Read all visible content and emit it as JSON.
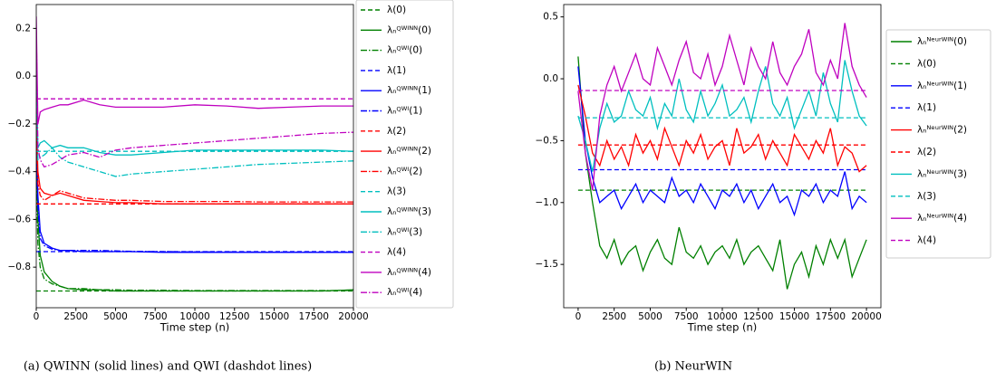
{
  "chart_data": [
    {
      "type": "line",
      "xlabel": "Time step (n)",
      "caption": "(a) QWINN (solid lines) and QWI (dashdot lines)",
      "x": [
        0,
        100,
        250,
        500,
        1000,
        1500,
        2000,
        3000,
        4000,
        5000,
        6000,
        8000,
        10000,
        12000,
        14000,
        16000,
        18000,
        20000
      ],
      "xlim": [
        0,
        20000
      ],
      "xticks": [
        0,
        2500,
        5000,
        7500,
        10000,
        12500,
        15000,
        17500,
        20000
      ],
      "ylim": [
        -0.97,
        0.3
      ],
      "yticks": [
        0.2,
        {
          "value": 0,
          "label": "0.0"
        },
        {
          "value": -0.2,
          "label": "−0.2"
        },
        {
          "value": -0.4,
          "label": "−0.4"
        },
        {
          "value": -0.6,
          "label": "−0.6"
        },
        {
          "value": -0.8,
          "label": "−0.8"
        }
      ],
      "legend": "outside right",
      "series": [
        {
          "name": "λ(0)",
          "color": "#008000",
          "style": "dashed",
          "x": [
            0,
            20000
          ],
          "values": [
            -0.9,
            -0.9
          ]
        },
        {
          "name": "λₙꟴᵂᴵᴺᴺ(0)",
          "color": "#008000",
          "style": "solid",
          "values": [
            -0.3,
            -0.6,
            -0.75,
            -0.82,
            -0.86,
            -0.88,
            -0.89,
            -0.895,
            -0.895,
            -0.9,
            -0.9,
            -0.9,
            -0.9,
            -0.9,
            -0.9,
            -0.9,
            -0.9,
            -0.895
          ]
        },
        {
          "name": "λₙꟴᵂᴵ(0)",
          "color": "#008000",
          "style": "dashdot",
          "values": [
            -0.4,
            -0.7,
            -0.8,
            -0.85,
            -0.87,
            -0.88,
            -0.89,
            -0.89,
            -0.895,
            -0.895,
            -0.897,
            -0.897,
            -0.898,
            -0.898,
            -0.898,
            -0.898,
            -0.898,
            -0.898
          ]
        },
        {
          "name": "λ(1)",
          "color": "#0000ff",
          "style": "dashed",
          "x": [
            0,
            20000
          ],
          "values": [
            -0.735,
            -0.735
          ]
        },
        {
          "name": "λₙꟴᵂᴵᴺᴺ(1)",
          "color": "#0000ff",
          "style": "solid",
          "values": [
            -0.2,
            -0.5,
            -0.65,
            -0.7,
            -0.72,
            -0.73,
            -0.73,
            -0.735,
            -0.735,
            -0.735,
            -0.735,
            -0.738,
            -0.738,
            -0.738,
            -0.738,
            -0.738,
            -0.738,
            -0.738
          ]
        },
        {
          "name": "λₙꟴᵂᴵ(1)",
          "color": "#0000ff",
          "style": "dashdot",
          "values": [
            -0.3,
            -0.55,
            -0.68,
            -0.71,
            -0.725,
            -0.73,
            -0.73,
            -0.73,
            -0.73,
            -0.732,
            -0.734,
            -0.735,
            -0.736,
            -0.736,
            -0.737,
            -0.737,
            -0.737,
            -0.737
          ]
        },
        {
          "name": "λ(2)",
          "color": "#ff0000",
          "style": "dashed",
          "x": [
            0,
            20000
          ],
          "values": [
            -0.535,
            -0.535
          ]
        },
        {
          "name": "λₙꟴᵂᴵᴺᴺ(2)",
          "color": "#ff0000",
          "style": "solid",
          "values": [
            -0.15,
            -0.4,
            -0.47,
            -0.49,
            -0.5,
            -0.49,
            -0.5,
            -0.52,
            -0.525,
            -0.53,
            -0.53,
            -0.535,
            -0.535,
            -0.535,
            -0.535,
            -0.535,
            -0.535,
            -0.535
          ]
        },
        {
          "name": "λₙꟴᵂᴵ(2)",
          "color": "#ff0000",
          "style": "dashdot",
          "values": [
            -0.2,
            -0.45,
            -0.5,
            -0.52,
            -0.5,
            -0.48,
            -0.49,
            -0.51,
            -0.515,
            -0.52,
            -0.52,
            -0.525,
            -0.525,
            -0.525,
            -0.527,
            -0.527,
            -0.527,
            -0.527
          ]
        },
        {
          "name": "λ(3)",
          "color": "#00bfbf",
          "style": "dashed",
          "x": [
            0,
            20000
          ],
          "values": [
            -0.315,
            -0.315
          ]
        },
        {
          "name": "λₙꟴᵂᴵᴺᴺ(3)",
          "color": "#00bfbf",
          "style": "solid",
          "values": [
            0.0,
            -0.3,
            -0.28,
            -0.27,
            -0.3,
            -0.29,
            -0.3,
            -0.3,
            -0.32,
            -0.33,
            -0.33,
            -0.32,
            -0.31,
            -0.31,
            -0.31,
            -0.31,
            -0.31,
            -0.315
          ]
        },
        {
          "name": "λₙꟴᵂᴵ(3)",
          "color": "#00bfbf",
          "style": "dashdot",
          "values": [
            0.1,
            -0.35,
            -0.34,
            -0.33,
            -0.3,
            -0.34,
            -0.36,
            -0.38,
            -0.4,
            -0.42,
            -0.41,
            -0.4,
            -0.39,
            -0.38,
            -0.37,
            -0.365,
            -0.36,
            -0.355
          ]
        },
        {
          "name": "λ(4)",
          "color": "#bf00bf",
          "style": "dashed",
          "x": [
            0,
            20000
          ],
          "values": [
            -0.095,
            -0.095
          ]
        },
        {
          "name": "λₙꟴᵂᴵᴺᴺ(4)",
          "color": "#bf00bf",
          "style": "solid",
          "values": [
            0.25,
            -0.2,
            -0.15,
            -0.14,
            -0.13,
            -0.12,
            -0.12,
            -0.1,
            -0.12,
            -0.13,
            -0.13,
            -0.13,
            -0.12,
            -0.125,
            -0.135,
            -0.13,
            -0.125,
            -0.125
          ]
        },
        {
          "name": "λₙꟴᵂᴵ(4)",
          "color": "#bf00bf",
          "style": "dashdot",
          "values": [
            0.2,
            -0.3,
            -0.35,
            -0.38,
            -0.37,
            -0.35,
            -0.33,
            -0.32,
            -0.34,
            -0.31,
            -0.3,
            -0.29,
            -0.28,
            -0.27,
            -0.26,
            -0.25,
            -0.24,
            -0.235
          ]
        }
      ]
    },
    {
      "type": "line",
      "xlabel": "Time step (n)",
      "caption": "(b) NeurWIN",
      "x": [
        0,
        500,
        1000,
        1500,
        2000,
        2500,
        3000,
        3500,
        4000,
        4500,
        5000,
        5500,
        6000,
        6500,
        7000,
        7500,
        8000,
        8500,
        9000,
        9500,
        10000,
        10500,
        11000,
        11500,
        12000,
        12500,
        13000,
        13500,
        14000,
        14500,
        15000,
        15500,
        16000,
        16500,
        17000,
        17500,
        18000,
        18500,
        19000,
        19500,
        20000
      ],
      "xlim": [
        -1000,
        21000
      ],
      "xticks": [
        0,
        2500,
        5000,
        7500,
        10000,
        12500,
        15000,
        17500,
        20000
      ],
      "ylim": [
        -1.85,
        0.6
      ],
      "yticks": [
        0.5,
        {
          "value": 0,
          "label": "0.0"
        },
        {
          "value": -0.5,
          "label": "−0.5"
        },
        {
          "value": -1.0,
          "label": "−1.0"
        },
        {
          "value": -1.5,
          "label": "−1.5"
        }
      ],
      "legend": "outside right",
      "series": [
        {
          "name": "λₙᴺᵉᵘʳᵂᴵᴺ(0)",
          "color": "#008000",
          "style": "solid",
          "values": [
            0.18,
            -0.6,
            -1.0,
            -1.35,
            -1.45,
            -1.3,
            -1.5,
            -1.4,
            -1.35,
            -1.55,
            -1.4,
            -1.3,
            -1.45,
            -1.5,
            -1.2,
            -1.4,
            -1.45,
            -1.35,
            -1.5,
            -1.4,
            -1.35,
            -1.45,
            -1.3,
            -1.5,
            -1.4,
            -1.35,
            -1.45,
            -1.55,
            -1.3,
            -1.7,
            -1.5,
            -1.4,
            -1.6,
            -1.35,
            -1.5,
            -1.3,
            -1.45,
            -1.3,
            -1.6,
            -1.45,
            -1.3
          ]
        },
        {
          "name": "λ(0)",
          "color": "#008000",
          "style": "dashed",
          "x": [
            0,
            20000
          ],
          "values": [
            -0.9,
            -0.9
          ]
        },
        {
          "name": "λₙᴺᵉᵘʳᵂᴵᴺ(1)",
          "color": "#0000ff",
          "style": "solid",
          "values": [
            0.1,
            -0.5,
            -0.8,
            -1.0,
            -0.95,
            -0.9,
            -1.05,
            -0.95,
            -0.85,
            -1.0,
            -0.9,
            -0.95,
            -1.0,
            -0.8,
            -0.95,
            -0.9,
            -1.0,
            -0.85,
            -0.95,
            -1.05,
            -0.9,
            -0.95,
            -0.85,
            -1.0,
            -0.9,
            -1.05,
            -0.95,
            -0.85,
            -1.0,
            -0.95,
            -1.1,
            -0.9,
            -0.95,
            -0.85,
            -1.0,
            -0.9,
            -0.95,
            -0.75,
            -1.05,
            -0.95,
            -1.0
          ]
        },
        {
          "name": "λ(1)",
          "color": "#0000ff",
          "style": "dashed",
          "x": [
            0,
            20000
          ],
          "values": [
            -0.735,
            -0.735
          ]
        },
        {
          "name": "λₙᴺᵉᵘʳᵂᴵᴺ(2)",
          "color": "#ff0000",
          "style": "solid",
          "values": [
            -0.05,
            -0.3,
            -0.6,
            -0.7,
            -0.5,
            -0.65,
            -0.55,
            -0.7,
            -0.45,
            -0.6,
            -0.5,
            -0.65,
            -0.4,
            -0.55,
            -0.7,
            -0.5,
            -0.6,
            -0.45,
            -0.65,
            -0.55,
            -0.5,
            -0.7,
            -0.4,
            -0.6,
            -0.55,
            -0.45,
            -0.65,
            -0.5,
            -0.6,
            -0.7,
            -0.45,
            -0.55,
            -0.65,
            -0.5,
            -0.6,
            -0.4,
            -0.7,
            -0.55,
            -0.6,
            -0.75,
            -0.7
          ]
        },
        {
          "name": "λ(2)",
          "color": "#ff0000",
          "style": "dashed",
          "x": [
            0,
            20000
          ],
          "values": [
            -0.535,
            -0.535
          ]
        },
        {
          "name": "λₙᴺᵉᵘʳᵂᴵᴺ(3)",
          "color": "#00bfbf",
          "style": "solid",
          "values": [
            -0.3,
            -0.5,
            -0.75,
            -0.4,
            -0.2,
            -0.35,
            -0.3,
            -0.1,
            -0.25,
            -0.3,
            -0.15,
            -0.4,
            -0.2,
            -0.3,
            0.0,
            -0.25,
            -0.35,
            -0.1,
            -0.3,
            -0.2,
            -0.05,
            -0.3,
            -0.25,
            -0.15,
            -0.35,
            -0.1,
            0.1,
            -0.2,
            -0.3,
            -0.15,
            -0.4,
            -0.25,
            -0.1,
            -0.3,
            0.05,
            -0.2,
            -0.35,
            0.15,
            -0.1,
            -0.3,
            -0.38
          ]
        },
        {
          "name": "λ(3)",
          "color": "#00bfbf",
          "style": "dashed",
          "x": [
            0,
            20000
          ],
          "values": [
            -0.315,
            -0.315
          ]
        },
        {
          "name": "λₙᴺᵉᵘʳᵂᴵᴺ(4)",
          "color": "#bf00bf",
          "style": "solid",
          "values": [
            -0.1,
            -0.6,
            -0.9,
            -0.3,
            -0.05,
            0.1,
            -0.1,
            0.05,
            0.2,
            0.0,
            -0.05,
            0.25,
            0.1,
            -0.05,
            0.15,
            0.3,
            0.05,
            0.0,
            0.2,
            -0.05,
            0.1,
            0.35,
            0.15,
            -0.05,
            0.25,
            0.1,
            0.0,
            0.3,
            0.05,
            -0.05,
            0.1,
            0.2,
            0.4,
            0.05,
            -0.05,
            0.15,
            0.0,
            0.45,
            0.1,
            -0.05,
            -0.15
          ]
        },
        {
          "name": "λ(4)",
          "color": "#bf00bf",
          "style": "dashed",
          "x": [
            0,
            20000
          ],
          "values": [
            -0.095,
            -0.095
          ]
        }
      ]
    }
  ]
}
